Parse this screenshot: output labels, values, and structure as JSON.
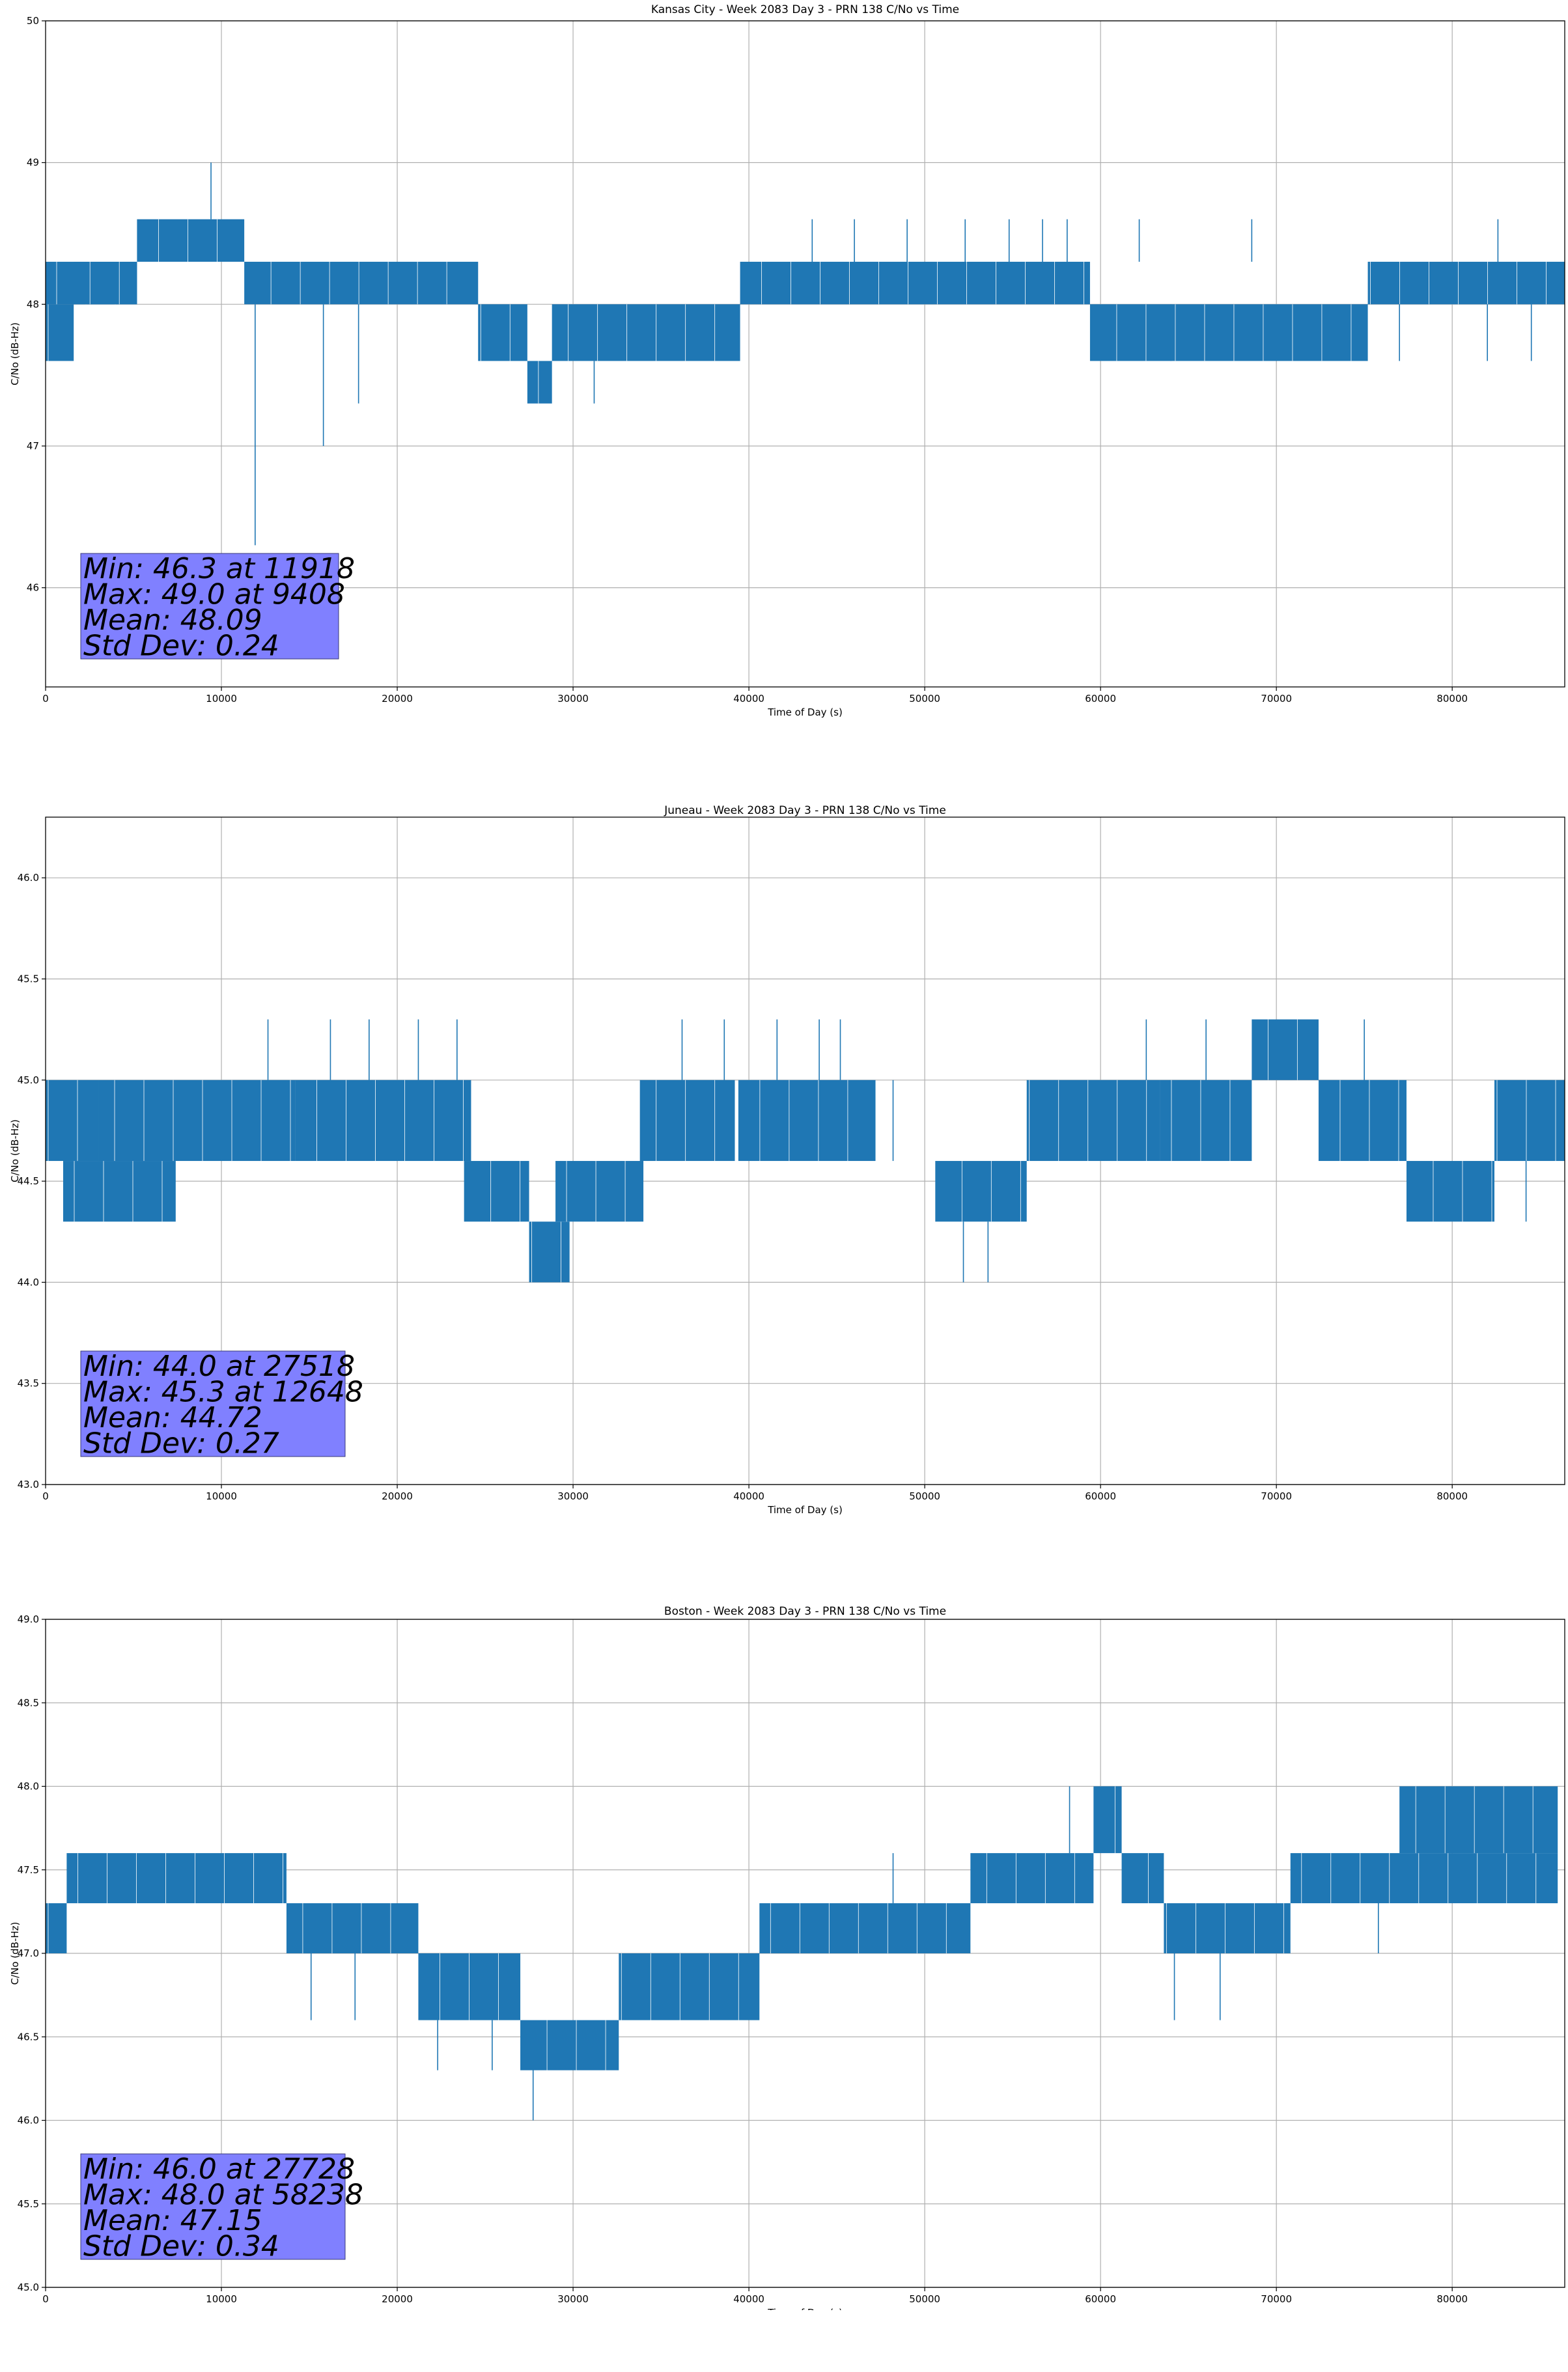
{
  "chart_data": [
    {
      "type": "line",
      "title": "Kansas City - Week 2083 Day 3 - PRN 138 C/No vs Time",
      "xlabel": "Time of Day (s)",
      "ylabel": "C/No (dB-Hz)",
      "xlim": [
        0,
        86400
      ],
      "ylim": [
        45.3,
        50.0
      ],
      "xticks": [
        0,
        10000,
        20000,
        30000,
        40000,
        50000,
        60000,
        70000,
        80000
      ],
      "xtick_labels": [
        "0",
        "10000",
        "20000",
        "30000",
        "40000",
        "50000",
        "60000",
        "70000",
        "80000"
      ],
      "yticks": [
        46,
        47,
        48,
        49,
        50
      ],
      "ytick_labels": [
        "46",
        "47",
        "48",
        "49",
        "50"
      ],
      "grid": true,
      "color": "#1f77b4",
      "segments": [
        {
          "x0": 0,
          "x1": 1600,
          "low": 47.6,
          "high": 48.0
        },
        {
          "x0": 0,
          "x1": 5200,
          "low": 48.0,
          "high": 48.3
        },
        {
          "x0": 1600,
          "x1": 5200,
          "low": 48.0,
          "high": 48.3
        },
        {
          "x0": 5200,
          "x1": 11300,
          "low": 48.3,
          "high": 48.6
        },
        {
          "x0": 11300,
          "x1": 24600,
          "low": 48.0,
          "high": 48.3
        },
        {
          "x0": 24600,
          "x1": 27400,
          "low": 47.6,
          "high": 48.0
        },
        {
          "x0": 27400,
          "x1": 28800,
          "low": 47.3,
          "high": 47.6
        },
        {
          "x0": 28800,
          "x1": 39500,
          "low": 47.6,
          "high": 48.0
        },
        {
          "x0": 39500,
          "x1": 59400,
          "low": 48.0,
          "high": 48.3
        },
        {
          "x0": 59400,
          "x1": 75200,
          "low": 47.6,
          "high": 48.0
        },
        {
          "x0": 75200,
          "x1": 86400,
          "low": 48.0,
          "high": 48.3
        }
      ],
      "spikes": [
        {
          "x": 9408,
          "low": 48.6,
          "high": 49.0
        },
        {
          "x": 11918,
          "low": 46.3,
          "high": 48.0
        },
        {
          "x": 15800,
          "low": 47.0,
          "high": 48.0
        },
        {
          "x": 17800,
          "low": 47.3,
          "high": 48.0
        },
        {
          "x": 31200,
          "low": 47.3,
          "high": 47.6
        },
        {
          "x": 43600,
          "low": 48.3,
          "high": 48.6
        },
        {
          "x": 46000,
          "low": 48.3,
          "high": 48.6
        },
        {
          "x": 49000,
          "low": 48.3,
          "high": 48.6
        },
        {
          "x": 52300,
          "low": 48.3,
          "high": 48.6
        },
        {
          "x": 54800,
          "low": 48.3,
          "high": 48.6
        },
        {
          "x": 56700,
          "low": 48.3,
          "high": 48.6
        },
        {
          "x": 58100,
          "low": 48.3,
          "high": 48.6
        },
        {
          "x": 62200,
          "low": 48.3,
          "high": 48.6
        },
        {
          "x": 68600,
          "low": 48.3,
          "high": 48.6
        },
        {
          "x": 82600,
          "low": 48.3,
          "high": 48.6
        },
        {
          "x": 64000,
          "low": 47.6,
          "high": 48.0
        },
        {
          "x": 77000,
          "low": 47.6,
          "high": 48.0
        },
        {
          "x": 82000,
          "low": 47.6,
          "high": 48.0
        },
        {
          "x": 84500,
          "low": 47.6,
          "high": 48.0
        }
      ],
      "stats": {
        "min": "Min: 46.3 at 11918",
        "max": "Max: 49.0 at 9408",
        "mean": "Mean: 48.09",
        "std": "Std Dev: 0.24"
      }
    },
    {
      "type": "line",
      "title": "Juneau - Week 2083 Day 3 - PRN 138 C/No vs Time",
      "xlabel": "Time of Day (s)",
      "ylabel": "C/No (dB-Hz)",
      "xlim": [
        0,
        86400
      ],
      "ylim": [
        43.0,
        46.3
      ],
      "xticks": [
        0,
        10000,
        20000,
        30000,
        40000,
        50000,
        60000,
        70000,
        80000
      ],
      "xtick_labels": [
        "0",
        "10000",
        "20000",
        "30000",
        "40000",
        "50000",
        "60000",
        "70000",
        "80000"
      ],
      "yticks": [
        43.0,
        43.5,
        44.0,
        44.5,
        45.0,
        45.5,
        46.0
      ],
      "ytick_labels": [
        "43.0",
        "43.5",
        "44.0",
        "44.5",
        "45.0",
        "45.5",
        "46.0"
      ],
      "grid": true,
      "color": "#1f77b4",
      "segments": [
        {
          "x0": 0,
          "x1": 3000,
          "low": 44.6,
          "high": 45.0
        },
        {
          "x0": 1000,
          "x1": 7400,
          "low": 44.3,
          "high": 44.6
        },
        {
          "x0": 3000,
          "x1": 14200,
          "low": 44.6,
          "high": 45.0
        },
        {
          "x0": 14200,
          "x1": 24200,
          "low": 44.6,
          "high": 45.0
        },
        {
          "x0": 23800,
          "x1": 27500,
          "low": 44.3,
          "high": 44.6
        },
        {
          "x0": 27500,
          "x1": 29800,
          "low": 44.0,
          "high": 44.3
        },
        {
          "x0": 29000,
          "x1": 34000,
          "low": 44.3,
          "high": 44.6
        },
        {
          "x0": 33800,
          "x1": 39200,
          "low": 44.6,
          "high": 45.0
        },
        {
          "x0": 39400,
          "x1": 47200,
          "low": 44.6,
          "high": 45.0
        },
        {
          "x0": 50600,
          "x1": 55800,
          "low": 44.3,
          "high": 44.6
        },
        {
          "x0": 55800,
          "x1": 63400,
          "low": 44.6,
          "high": 45.0
        },
        {
          "x0": 63400,
          "x1": 68600,
          "low": 44.6,
          "high": 45.0
        },
        {
          "x0": 68600,
          "x1": 72400,
          "low": 45.0,
          "high": 45.3
        },
        {
          "x0": 72400,
          "x1": 77400,
          "low": 44.6,
          "high": 45.0
        },
        {
          "x0": 77400,
          "x1": 82400,
          "low": 44.3,
          "high": 44.6
        },
        {
          "x0": 82400,
          "x1": 86400,
          "low": 44.6,
          "high": 45.0
        }
      ],
      "spikes": [
        {
          "x": 12648,
          "low": 45.0,
          "high": 45.3
        },
        {
          "x": 16200,
          "low": 45.0,
          "high": 45.3
        },
        {
          "x": 18400,
          "low": 45.0,
          "high": 45.3
        },
        {
          "x": 21200,
          "low": 45.0,
          "high": 45.3
        },
        {
          "x": 23400,
          "low": 45.0,
          "high": 45.3
        },
        {
          "x": 36200,
          "low": 45.0,
          "high": 45.3
        },
        {
          "x": 38600,
          "low": 45.0,
          "high": 45.3
        },
        {
          "x": 41600,
          "low": 45.0,
          "high": 45.3
        },
        {
          "x": 44000,
          "low": 45.0,
          "high": 45.3
        },
        {
          "x": 45200,
          "low": 45.0,
          "high": 45.3
        },
        {
          "x": 48200,
          "low": 44.6,
          "high": 45.0
        },
        {
          "x": 52200,
          "low": 44.0,
          "high": 44.3
        },
        {
          "x": 53600,
          "low": 44.0,
          "high": 44.3
        },
        {
          "x": 62600,
          "low": 45.0,
          "high": 45.3
        },
        {
          "x": 66000,
          "low": 45.0,
          "high": 45.3
        },
        {
          "x": 75000,
          "low": 45.0,
          "high": 45.3
        },
        {
          "x": 84200,
          "low": 44.3,
          "high": 44.6
        }
      ],
      "stats": {
        "min": "Min: 44.0 at 27518",
        "max": "Max: 45.3 at 12648",
        "mean": "Mean: 44.72",
        "std": "Std Dev: 0.27"
      }
    },
    {
      "type": "line",
      "title": "Boston - Week 2083 Day 3 - PRN 138 C/No vs Time",
      "xlabel": "Time of Day (s)",
      "ylabel": "C/No (dB-Hz)",
      "xlim": [
        0,
        86400
      ],
      "ylim": [
        45.0,
        49.0
      ],
      "xticks": [
        0,
        10000,
        20000,
        30000,
        40000,
        50000,
        60000,
        70000,
        80000
      ],
      "xtick_labels": [
        "0",
        "10000",
        "20000",
        "30000",
        "40000",
        "50000",
        "60000",
        "70000",
        "80000"
      ],
      "yticks": [
        45.0,
        45.5,
        46.0,
        46.5,
        47.0,
        47.5,
        48.0,
        48.5,
        49.0
      ],
      "ytick_labels": [
        "45.0",
        "45.5",
        "46.0",
        "46.5",
        "47.0",
        "47.5",
        "48.0",
        "48.5",
        "49.0"
      ],
      "grid": true,
      "color": "#1f77b4",
      "segments": [
        {
          "x0": 0,
          "x1": 1200,
          "low": 47.0,
          "high": 47.3
        },
        {
          "x0": 1200,
          "x1": 13700,
          "low": 47.3,
          "high": 47.6
        },
        {
          "x0": 13700,
          "x1": 21200,
          "low": 47.0,
          "high": 47.3
        },
        {
          "x0": 21200,
          "x1": 27000,
          "low": 46.6,
          "high": 47.0
        },
        {
          "x0": 27000,
          "x1": 32600,
          "low": 46.3,
          "high": 46.6
        },
        {
          "x0": 32600,
          "x1": 40600,
          "low": 46.6,
          "high": 47.0
        },
        {
          "x0": 40600,
          "x1": 52600,
          "low": 47.0,
          "high": 47.3
        },
        {
          "x0": 52600,
          "x1": 59600,
          "low": 47.3,
          "high": 47.6
        },
        {
          "x0": 59600,
          "x1": 61200,
          "low": 47.6,
          "high": 48.0
        },
        {
          "x0": 61200,
          "x1": 63600,
          "low": 47.3,
          "high": 47.6
        },
        {
          "x0": 63600,
          "x1": 70800,
          "low": 47.0,
          "high": 47.3
        },
        {
          "x0": 70800,
          "x1": 86000,
          "low": 47.3,
          "high": 47.6
        },
        {
          "x0": 77000,
          "x1": 86000,
          "low": 47.6,
          "high": 48.0
        }
      ],
      "spikes": [
        {
          "x": 27728,
          "low": 46.0,
          "high": 46.3
        },
        {
          "x": 15100,
          "low": 46.6,
          "high": 47.0
        },
        {
          "x": 17600,
          "low": 46.6,
          "high": 47.0
        },
        {
          "x": 22300,
          "low": 46.3,
          "high": 46.6
        },
        {
          "x": 25400,
          "low": 46.3,
          "high": 46.6
        },
        {
          "x": 48200,
          "low": 47.3,
          "high": 47.6
        },
        {
          "x": 58238,
          "low": 47.6,
          "high": 48.0
        },
        {
          "x": 64200,
          "low": 46.6,
          "high": 47.0
        },
        {
          "x": 66800,
          "low": 46.6,
          "high": 47.0
        },
        {
          "x": 75800,
          "low": 47.0,
          "high": 47.3
        }
      ],
      "stats": {
        "min": "Min: 46.0 at 27728",
        "max": "Max: 48.0 at 58238",
        "mean": "Mean: 47.15",
        "std": "Std Dev: 0.34"
      }
    }
  ]
}
